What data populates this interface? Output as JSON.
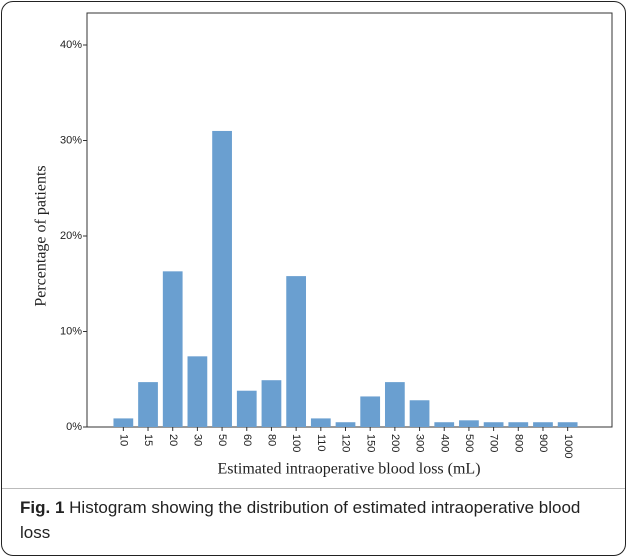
{
  "chart_data": {
    "type": "bar",
    "y_label": "Percentage of patients",
    "x_label": "Estimated intraoperative blood loss (mL)",
    "categories": [
      "10",
      "15",
      "20",
      "30",
      "50",
      "60",
      "80",
      "100",
      "110",
      "120",
      "150",
      "200",
      "300",
      "400",
      "500",
      "700",
      "800",
      "900",
      "1000"
    ],
    "values": [
      0.9,
      4.7,
      16.3,
      7.4,
      31.0,
      3.8,
      4.9,
      15.8,
      0.9,
      0.5,
      3.2,
      4.7,
      2.8,
      0.5,
      0.7,
      0.5,
      0.5,
      0.5,
      0.5
    ],
    "color": "#6a9fd0",
    "ylim": [
      0,
      40
    ],
    "yticks": [
      {
        "value": 0,
        "label": "0%"
      },
      {
        "value": 10,
        "label": "10%"
      },
      {
        "value": 20,
        "label": "20%"
      },
      {
        "value": 30,
        "label": "30%"
      },
      {
        "value": 40,
        "label": "40%"
      }
    ]
  },
  "caption": {
    "label": "Fig. 1",
    "text": "Histogram showing the distribution of estimated intraoperative blood loss"
  }
}
